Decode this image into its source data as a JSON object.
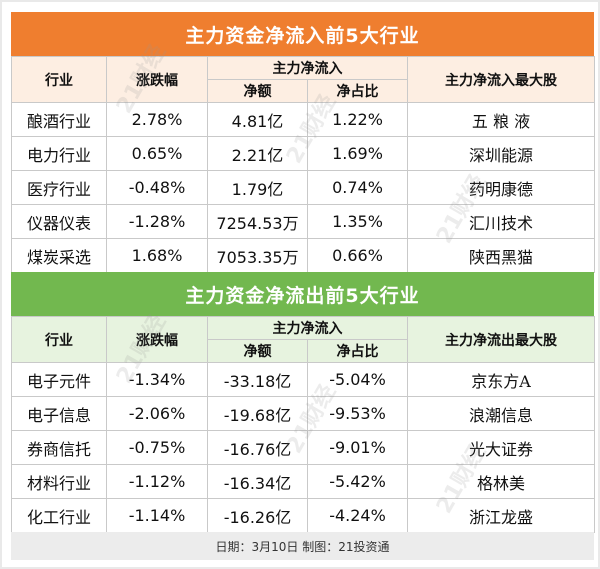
{
  "inflow": {
    "title": "主力资金净流入前5大行业",
    "headers": {
      "sector": "行业",
      "change": "涨跌幅",
      "net_group": "主力净流入",
      "amount": "净额",
      "ratio": "净占比",
      "top_stock": "主力净流入最大股"
    },
    "rows": [
      {
        "sector": "酿酒行业",
        "change": "2.78%",
        "amount": "4.81亿",
        "ratio": "1.22%",
        "stock": "五 粮 液"
      },
      {
        "sector": "电力行业",
        "change": "0.65%",
        "amount": "2.21亿",
        "ratio": "1.69%",
        "stock": "深圳能源"
      },
      {
        "sector": "医疗行业",
        "change": "-0.48%",
        "amount": "1.79亿",
        "ratio": "0.74%",
        "stock": "药明康德"
      },
      {
        "sector": "仪器仪表",
        "change": "-1.28%",
        "amount": "7254.53万",
        "ratio": "1.35%",
        "stock": "汇川技术"
      },
      {
        "sector": "煤炭采选",
        "change": "1.68%",
        "amount": "7053.35万",
        "ratio": "0.66%",
        "stock": "陕西黑猫"
      }
    ]
  },
  "outflow": {
    "title": "主力资金净流出前5大行业",
    "headers": {
      "sector": "行业",
      "change": "涨跌幅",
      "net_group": "主力净流入",
      "amount": "净额",
      "ratio": "净占比",
      "top_stock": "主力净流出最大股"
    },
    "rows": [
      {
        "sector": "电子元件",
        "change": "-1.34%",
        "amount": "-33.18亿",
        "ratio": "-5.04%",
        "stock": "京东方A"
      },
      {
        "sector": "电子信息",
        "change": "-2.06%",
        "amount": "-19.68亿",
        "ratio": "-9.53%",
        "stock": "浪潮信息"
      },
      {
        "sector": "券商信托",
        "change": "-0.75%",
        "amount": "-16.76亿",
        "ratio": "-9.01%",
        "stock": "光大证券"
      },
      {
        "sector": "材料行业",
        "change": "-1.12%",
        "amount": "-16.34亿",
        "ratio": "-5.42%",
        "stock": "格林美"
      },
      {
        "sector": "化工行业",
        "change": "-1.14%",
        "amount": "-16.26亿",
        "ratio": "-4.24%",
        "stock": "浙江龙盛"
      }
    ]
  },
  "footer": "日期：3月10日  制图：21投资通",
  "watermark": "21财经",
  "colors": {
    "inflow_banner": "#ef7e2f",
    "outflow_banner": "#72b84f",
    "inflow_header": "#fdeee2",
    "outflow_header": "#e7f3df"
  }
}
